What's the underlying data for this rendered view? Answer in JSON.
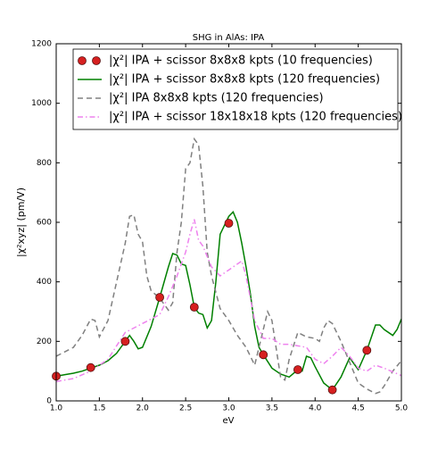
{
  "chart_data": {
    "type": "line",
    "title": "SHG in AlAs: IPA",
    "xlabel": "eV",
    "ylabel": "|χ²xyz| (pm/V)",
    "xlim": [
      1.0,
      5.0
    ],
    "ylim": [
      0,
      1200
    ],
    "xticks": [
      {
        "value": 1.0,
        "label": "1.0"
      },
      {
        "value": 1.5,
        "label": "1.5"
      },
      {
        "value": 2.0,
        "label": "2.0"
      },
      {
        "value": 2.5,
        "label": "2.5"
      },
      {
        "value": 3.0,
        "label": "3.0"
      },
      {
        "value": 3.5,
        "label": "3.5"
      },
      {
        "value": 4.0,
        "label": "4.0"
      },
      {
        "value": 4.5,
        "label": "4.5"
      },
      {
        "value": 5.0,
        "label": "5.0"
      }
    ],
    "yticks": [
      0,
      200,
      400,
      600,
      800,
      1000,
      1200
    ],
    "legend": "top",
    "series": [
      {
        "name": "|χ²| IPA + scissor 8x8x8 kpts (10 frequencies)",
        "type": "scatter",
        "color": "#d62020",
        "x": [
          1.0,
          1.4,
          1.8,
          2.2,
          2.6,
          3.0,
          3.4,
          3.8,
          4.2,
          4.6
        ],
        "values": [
          83,
          112,
          200,
          348,
          315,
          597,
          155,
          105,
          37,
          170
        ]
      },
      {
        "name": "|χ²| IPA + scissor 8x8x8 kpts (120 frequencies)",
        "type": "line",
        "color": "#008000",
        "linestyle": "solid",
        "x": [
          1.0,
          1.1,
          1.2,
          1.3,
          1.4,
          1.5,
          1.6,
          1.7,
          1.8,
          1.85,
          1.9,
          1.95,
          2.0,
          2.1,
          2.2,
          2.3,
          2.35,
          2.4,
          2.45,
          2.5,
          2.55,
          2.6,
          2.65,
          2.7,
          2.75,
          2.8,
          2.85,
          2.9,
          2.95,
          3.0,
          3.05,
          3.1,
          3.15,
          3.2,
          3.25,
          3.3,
          3.35,
          3.4,
          3.5,
          3.6,
          3.7,
          3.8,
          3.85,
          3.9,
          3.95,
          4.0,
          4.1,
          4.2,
          4.3,
          4.4,
          4.5,
          4.6,
          4.7,
          4.75,
          4.8,
          4.9,
          4.95,
          5.0
        ],
        "values": [
          83,
          88,
          93,
          100,
          110,
          120,
          135,
          160,
          200,
          220,
          200,
          175,
          180,
          250,
          348,
          450,
          495,
          490,
          460,
          455,
          390,
          315,
          295,
          290,
          245,
          270,
          400,
          560,
          590,
          620,
          635,
          600,
          530,
          450,
          360,
          250,
          180,
          155,
          110,
          90,
          80,
          105,
          100,
          150,
          145,
          115,
          60,
          37,
          80,
          145,
          105,
          170,
          255,
          255,
          240,
          220,
          240,
          275
        ]
      },
      {
        "name": "|χ²| IPA 8x8x8 kpts (120 frequencies)",
        "type": "line",
        "color": "#808080",
        "linestyle": "dashed",
        "x": [
          1.0,
          1.2,
          1.3,
          1.4,
          1.45,
          1.5,
          1.6,
          1.7,
          1.8,
          1.85,
          1.9,
          1.95,
          2.0,
          2.05,
          2.1,
          2.2,
          2.3,
          2.35,
          2.4,
          2.45,
          2.5,
          2.55,
          2.6,
          2.65,
          2.7,
          2.75,
          2.8,
          2.9,
          3.0,
          3.1,
          3.2,
          3.3,
          3.4,
          3.45,
          3.5,
          3.6,
          3.65,
          3.7,
          3.8,
          3.9,
          4.0,
          4.05,
          4.1,
          4.15,
          4.2,
          4.3,
          4.4,
          4.5,
          4.6,
          4.7,
          4.75,
          4.8,
          4.9,
          5.0
        ],
        "values": [
          150,
          180,
          220,
          275,
          270,
          215,
          270,
          400,
          530,
          620,
          625,
          560,
          535,
          420,
          370,
          345,
          305,
          330,
          500,
          600,
          780,
          800,
          880,
          860,
          720,
          500,
          420,
          310,
          270,
          220,
          180,
          120,
          240,
          300,
          270,
          80,
          70,
          140,
          230,
          215,
          210,
          200,
          245,
          270,
          260,
          200,
          130,
          60,
          40,
          25,
          30,
          50,
          100,
          135
        ]
      },
      {
        "name": "|χ²| IPA + scissor 18x18x18 kpts (120 frequencies)",
        "type": "line",
        "color": "#ee82ee",
        "linestyle": "dashdot",
        "x": [
          1.0,
          1.2,
          1.4,
          1.6,
          1.8,
          2.0,
          2.2,
          2.3,
          2.4,
          2.5,
          2.55,
          2.6,
          2.65,
          2.7,
          2.8,
          2.9,
          3.0,
          3.1,
          3.15,
          3.2,
          3.3,
          3.4,
          3.5,
          3.6,
          3.7,
          3.8,
          3.9,
          4.0,
          4.1,
          4.2,
          4.3,
          4.4,
          4.5,
          4.6,
          4.7,
          4.8,
          5.0
        ],
        "values": [
          65,
          75,
          100,
          140,
          230,
          260,
          290,
          350,
          420,
          500,
          560,
          610,
          540,
          520,
          450,
          420,
          440,
          460,
          470,
          420,
          270,
          210,
          210,
          190,
          190,
          185,
          180,
          140,
          125,
          150,
          180,
          150,
          110,
          100,
          120,
          110,
          85
        ]
      }
    ]
  }
}
